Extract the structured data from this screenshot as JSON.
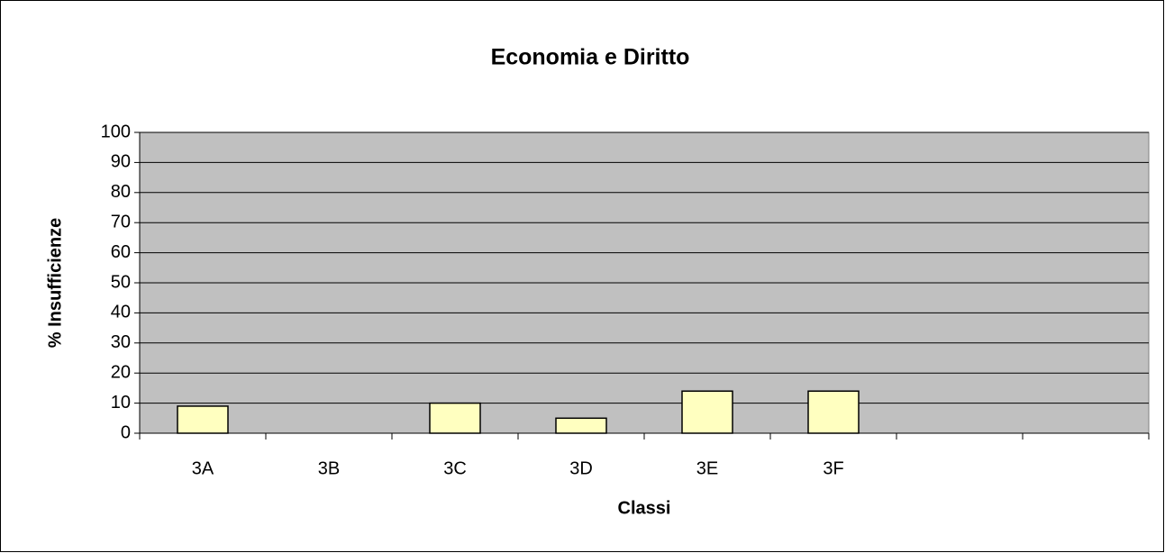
{
  "chart_data": {
    "type": "bar",
    "title": "Economia e Diritto",
    "x_label": "Classi",
    "y_label": "% Insufficienze",
    "categories": [
      "3A",
      "3B",
      "3C",
      "3D",
      "3E",
      "3F",
      null,
      null
    ],
    "values": [
      9,
      0,
      10,
      5,
      14,
      14,
      null,
      null
    ],
    "color": "#ffffc0",
    "ylim": [
      0,
      100
    ],
    "yticks": [
      0,
      10,
      20,
      30,
      40,
      50,
      60,
      70,
      80,
      90,
      100
    ],
    "grid": true
  }
}
